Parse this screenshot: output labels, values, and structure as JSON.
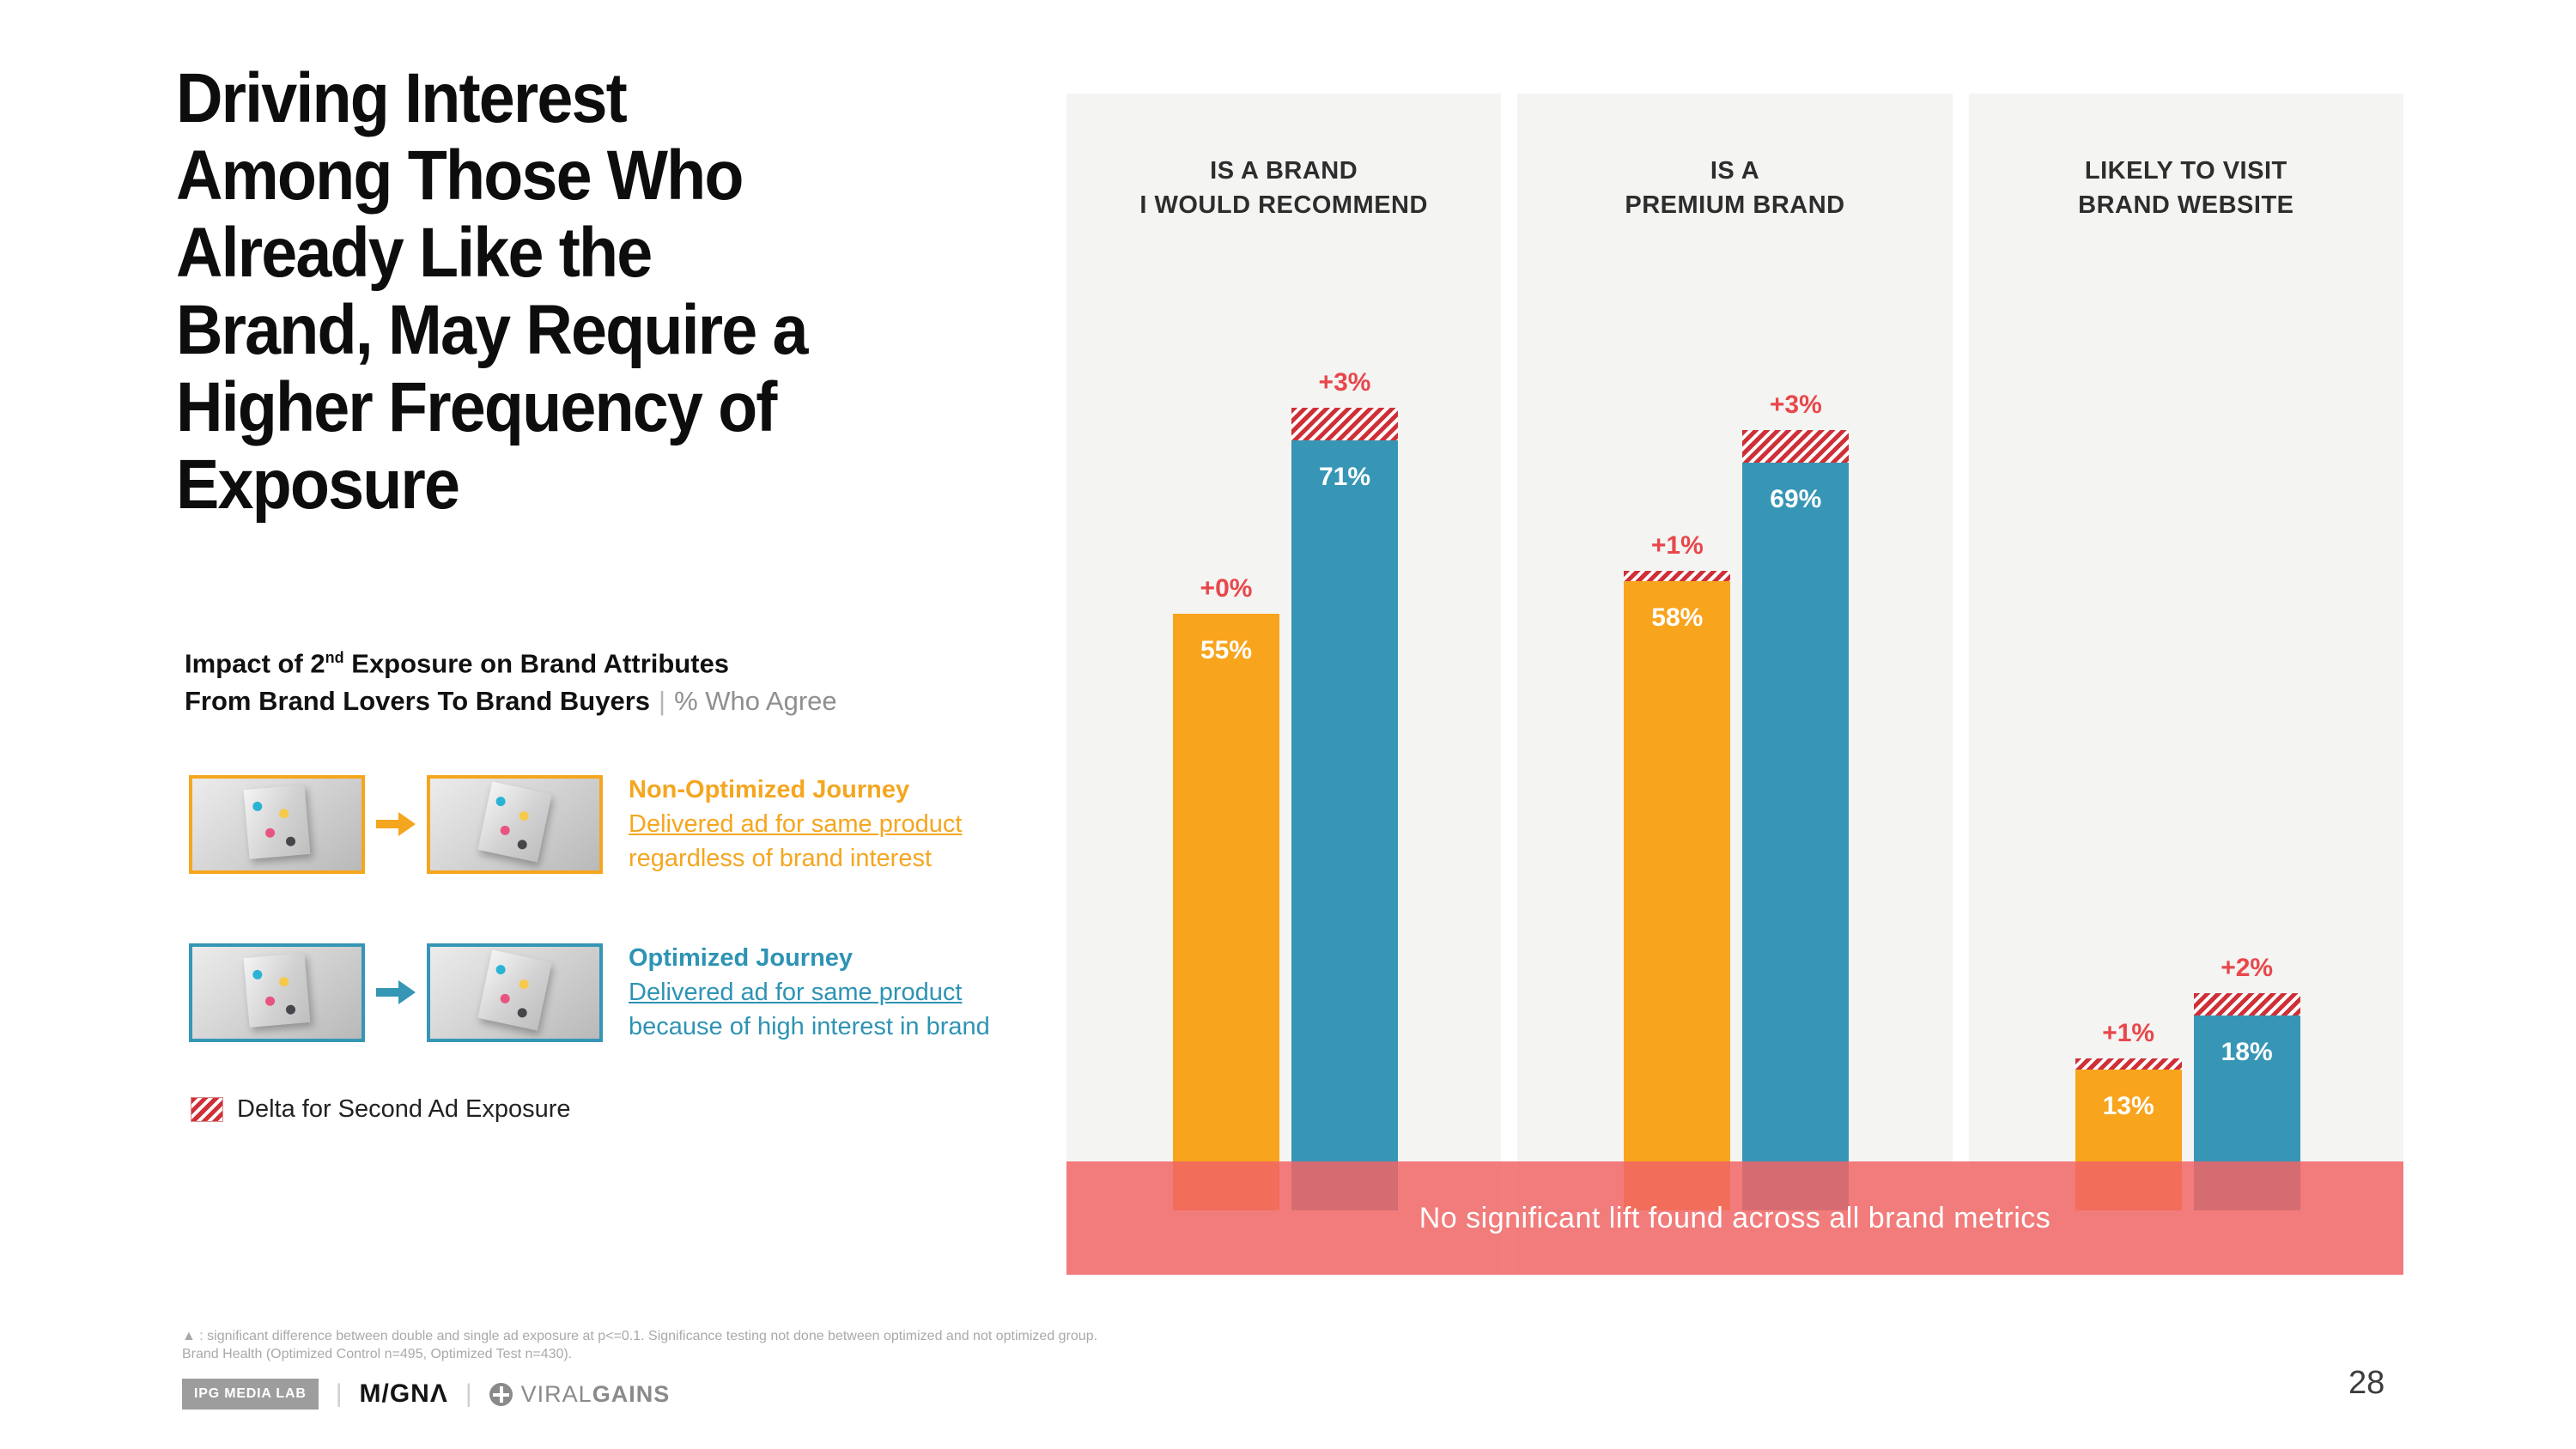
{
  "slide": {
    "title_lines": [
      "Driving Interest",
      "Among Those Who",
      "Already Like the",
      "Brand, May Require a",
      "Higher Frequency of",
      "Exposure"
    ],
    "subtitle": {
      "part1": "Impact of 2",
      "sup": "nd",
      "part2": " Exposure on Brand Attributes",
      "line2_bold": "From Brand Lovers To Brand Buyers",
      "pipe": "|",
      "light": "% Who Agree"
    }
  },
  "legend": {
    "non_optimized": {
      "title": "Non-Optimized Journey",
      "line1": "Delivered ad for same product",
      "line2": "regardless of brand interest",
      "color": "#F5A61F"
    },
    "optimized": {
      "title": "Optimized Journey",
      "line1": "Delivered ad for same product",
      "line2": "because of high interest in brand",
      "color": "#2E93B4"
    },
    "delta_label": "Delta for Second Ad Exposure"
  },
  "chart_data": {
    "type": "bar",
    "title": "Impact of 2nd Exposure on Brand Attributes From Brand Lovers To Brand Buyers",
    "ylabel": "% Who Agree",
    "ylim": [
      0,
      100
    ],
    "grid": false,
    "legend_position": "left",
    "series": [
      {
        "name": "Non-Optimized Journey",
        "color": "#F8A41D"
      },
      {
        "name": "Optimized Journey",
        "color": "#3796B5"
      }
    ],
    "delta_color": "#CF3038",
    "groups": [
      {
        "category_lines": [
          "IS A BRAND",
          "I WOULD RECOMMEND"
        ],
        "bars": [
          {
            "series": "Non-Optimized Journey",
            "value": 55,
            "delta": 0,
            "value_label": "55%",
            "delta_label": "+0%"
          },
          {
            "series": "Optimized Journey",
            "value": 71,
            "delta": 3,
            "value_label": "71%",
            "delta_label": "+3%"
          }
        ]
      },
      {
        "category_lines": [
          "IS A",
          "PREMIUM BRAND"
        ],
        "bars": [
          {
            "series": "Non-Optimized Journey",
            "value": 58,
            "delta": 1,
            "value_label": "58%",
            "delta_label": "+1%"
          },
          {
            "series": "Optimized Journey",
            "value": 69,
            "delta": 3,
            "value_label": "69%",
            "delta_label": "+3%"
          }
        ]
      },
      {
        "category_lines": [
          "LIKELY TO VISIT",
          "BRAND WEBSITE"
        ],
        "bars": [
          {
            "series": "Non-Optimized Journey",
            "value": 13,
            "delta": 1,
            "value_label": "13%",
            "delta_label": "+1%"
          },
          {
            "series": "Optimized Journey",
            "value": 18,
            "delta": 2,
            "value_label": "18%",
            "delta_label": "+2%"
          }
        ]
      }
    ],
    "banner": "No significant lift found across all brand metrics"
  },
  "footnote_lines": [
    "▲ : significant difference between double and single ad exposure at p<=0.1. Significance testing not done between optimized and not optimized group.",
    "Brand Health (Optimized Control n=495, Optimized Test n=430)."
  ],
  "footer": {
    "ipg_label": "IPG MEDIA LAB",
    "pipe": "|",
    "magna_label": "M/GNΛ",
    "viralgains_viral": "VIRAL",
    "viralgains_gains": "GAINS",
    "page_number": "28"
  }
}
